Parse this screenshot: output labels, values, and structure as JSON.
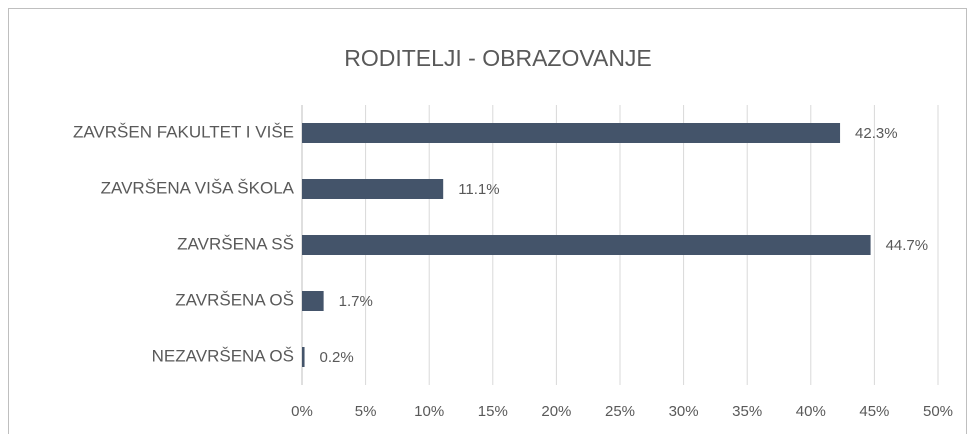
{
  "chart_data": {
    "type": "barh",
    "title": "RODITELJI - OBRAZOVANJE",
    "categories": [
      "ZAVRŠEN FAKULTET I VIŠE",
      "ZAVRŠENA VIŠA ŠKOLA",
      "ZAVRŠENA SŠ",
      "ZAVRŠENA OŠ",
      "NEZAVRŠENA OŠ"
    ],
    "values": [
      42.3,
      11.1,
      44.7,
      1.7,
      0.2
    ],
    "value_labels": [
      "42.3%",
      "11.1%",
      "44.7%",
      "1.7%",
      "0.2%"
    ],
    "color": "#44546a",
    "xlim": [
      0,
      50
    ],
    "xticks": [
      {
        "value": 0,
        "label": "0%"
      },
      {
        "value": 5,
        "label": "5%"
      },
      {
        "value": 10,
        "label": "10%"
      },
      {
        "value": 15,
        "label": "15%"
      },
      {
        "value": 20,
        "label": "20%"
      },
      {
        "value": 25,
        "label": "25%"
      },
      {
        "value": 30,
        "label": "30%"
      },
      {
        "value": 35,
        "label": "35%"
      },
      {
        "value": 40,
        "label": "40%"
      },
      {
        "value": 45,
        "label": "45%"
      },
      {
        "value": 50,
        "label": "50%"
      }
    ],
    "grid": true
  }
}
